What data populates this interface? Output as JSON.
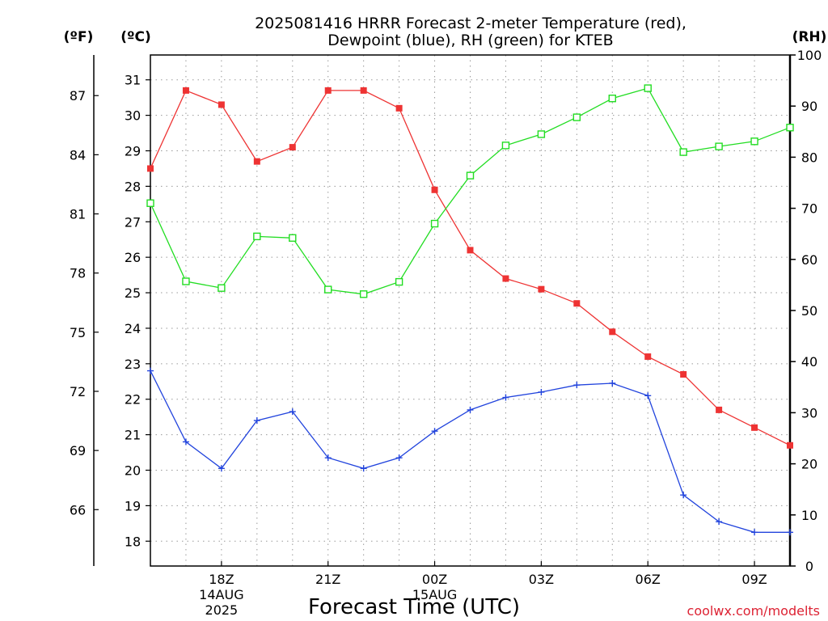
{
  "chart_data": {
    "type": "line",
    "title_lines": [
      "2025081416 HRRR Forecast 2-meter Temperature (red),",
      "Dewpoint (blue), RH (green) for KTEB"
    ],
    "xlabel": "Forecast Time (UTC)",
    "credit": "coolwx.com/modelts",
    "units": {
      "left_f": "(ºF)",
      "left_c": "(ºC)",
      "right_rh": "(RH)"
    },
    "x_hours": [
      16,
      17,
      18,
      19,
      20,
      21,
      22,
      23,
      24,
      25,
      26,
      27,
      28,
      29,
      30,
      31,
      32,
      33,
      34
    ],
    "xlim": [
      16,
      34
    ],
    "x_ticks": [
      {
        "h": 18,
        "lines": [
          "18Z",
          "14AUG",
          "2025"
        ]
      },
      {
        "h": 21,
        "lines": [
          "21Z"
        ]
      },
      {
        "h": 24,
        "lines": [
          "00Z",
          "15AUG"
        ]
      },
      {
        "h": 27,
        "lines": [
          "03Z"
        ]
      },
      {
        "h": 30,
        "lines": [
          "06Z"
        ]
      },
      {
        "h": 33,
        "lines": [
          "09Z"
        ]
      }
    ],
    "y_celsius": {
      "lim": [
        17.3,
        31.7
      ],
      "ticks": [
        "18",
        "19",
        "20",
        "21",
        "22",
        "23",
        "24",
        "25",
        "26",
        "27",
        "28",
        "29",
        "30",
        "31"
      ]
    },
    "y_fahrenheit": {
      "ticks": [
        "66",
        "69",
        "72",
        "75",
        "78",
        "81",
        "84",
        "87"
      ]
    },
    "y_rh": {
      "lim": [
        0,
        100
      ],
      "ticks": [
        "0",
        "10",
        "20",
        "30",
        "40",
        "50",
        "60",
        "70",
        "80",
        "90",
        "100"
      ]
    },
    "grid": true,
    "series": [
      {
        "name": "Temperature",
        "axis": "celsius",
        "color": "#ee3333",
        "marker": "filled-square",
        "values": [
          28.5,
          30.7,
          30.3,
          28.7,
          29.1,
          30.7,
          30.7,
          30.2,
          27.9,
          26.2,
          25.4,
          25.1,
          24.7,
          23.9,
          23.2,
          22.7,
          21.7,
          21.2,
          20.7
        ]
      },
      {
        "name": "Dewpoint",
        "axis": "celsius",
        "color": "#2244dd",
        "marker": "plus",
        "values": [
          22.8,
          20.8,
          20.05,
          21.4,
          21.65,
          20.35,
          20.05,
          20.35,
          21.1,
          21.7,
          22.05,
          22.2,
          22.4,
          22.45,
          22.1,
          19.3,
          18.55,
          18.25,
          18.25
        ]
      },
      {
        "name": "RH",
        "axis": "rh",
        "color": "#22dd22",
        "marker": "open-square",
        "values": [
          71.0,
          55.7,
          54.4,
          64.5,
          64.2,
          54.1,
          53.2,
          55.6,
          67.0,
          76.4,
          82.3,
          84.5,
          87.8,
          91.5,
          93.5,
          81.0,
          82.1,
          83.1,
          85.8
        ]
      }
    ]
  }
}
